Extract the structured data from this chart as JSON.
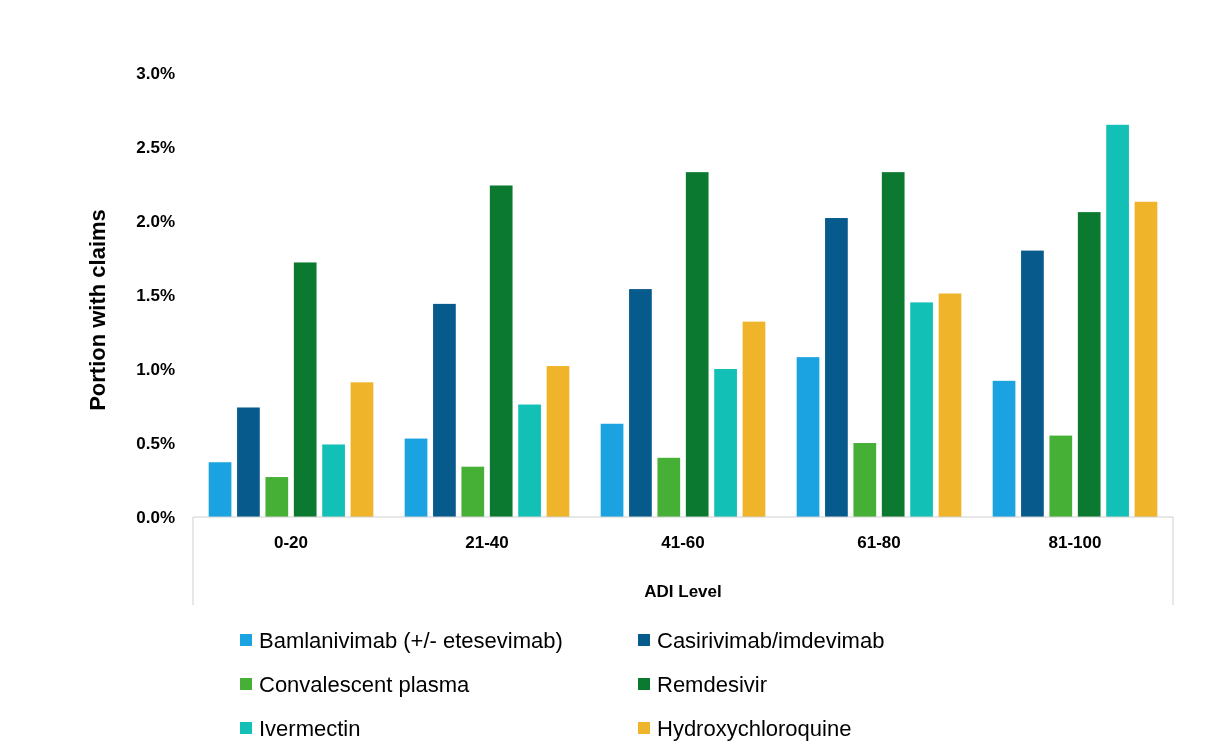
{
  "chart_data": {
    "type": "bar",
    "xlabel": "ADI Level",
    "ylabel": "Portion with claims",
    "categories": [
      "0-20",
      "21-40",
      "41-60",
      "61-80",
      "81-100"
    ],
    "series": [
      {
        "name": "Bamlanivimab (+/- etesevimab)",
        "color": "#1aa3e0",
        "values": [
          0.37,
          0.53,
          0.63,
          1.08,
          0.92
        ]
      },
      {
        "name": "Casirivimab/imdevimab",
        "color": "#065a8c",
        "values": [
          0.74,
          1.44,
          1.54,
          2.02,
          1.8
        ]
      },
      {
        "name": "Convalescent plasma",
        "color": "#45b035",
        "values": [
          0.27,
          0.34,
          0.4,
          0.5,
          0.55
        ]
      },
      {
        "name": "Remdesivir",
        "color": "#0b7a30",
        "values": [
          1.72,
          2.24,
          2.33,
          2.33,
          2.06
        ]
      },
      {
        "name": "Ivermectin",
        "color": "#12c0b6",
        "values": [
          0.49,
          0.76,
          1.0,
          1.45,
          2.65
        ]
      },
      {
        "name": "Hydroxychloroquine",
        "color": "#f0b42a",
        "values": [
          0.91,
          1.02,
          1.32,
          1.51,
          2.13
        ]
      }
    ],
    "ylim": [
      0,
      3
    ],
    "yticks": [
      {
        "value": 0,
        "label": "0.0%"
      },
      {
        "value": 0.5,
        "label": "0.5%"
      },
      {
        "value": 1,
        "label": "1.0%"
      },
      {
        "value": 1.5,
        "label": "1.5%"
      },
      {
        "value": 2,
        "label": "2.0%"
      },
      {
        "value": 2.5,
        "label": "2.5%"
      },
      {
        "value": 3,
        "label": "3.0%"
      }
    ],
    "grid": false,
    "legend": "bottom"
  }
}
